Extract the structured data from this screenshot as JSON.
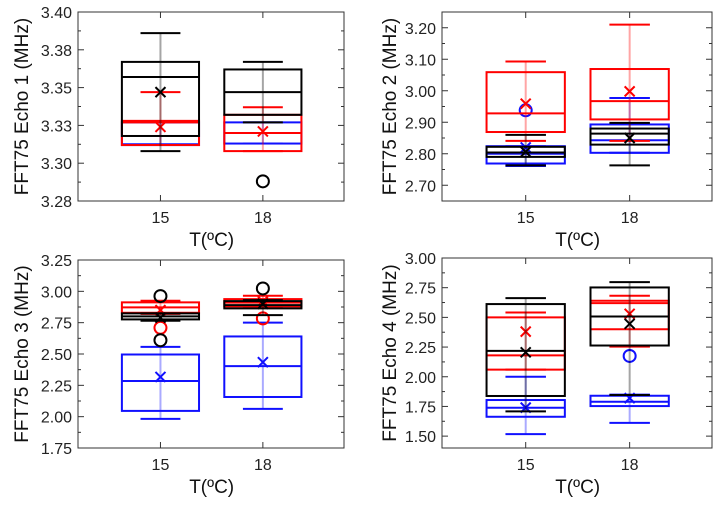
{
  "chart_data": [
    {
      "type": "box",
      "ylabel": "FFT75 Echo 1 (MHz)",
      "xlabel": "T(ºC)",
      "categories": [
        "15",
        "18"
      ],
      "ylim": [
        3.275,
        3.4
      ],
      "yticks": [
        3.4,
        3.375,
        3.35,
        3.325,
        3.3,
        3.275
      ],
      "yticklabels": [
        "3.40",
        "3.38",
        "3.35",
        "3.33",
        "3.30",
        "3.28"
      ],
      "series": [
        {
          "name": "blue",
          "color": "#1010ff",
          "boxes": [
            {
              "lo": 3.312,
              "q1": 3.312,
              "med": 3.3125,
              "q3": 3.327,
              "hi": 3.327,
              "mean": null,
              "outliers": []
            },
            {
              "lo": 3.313,
              "q1": 3.313,
              "med": 3.32,
              "q3": 3.327,
              "hi": 3.327,
              "mean": null,
              "outliers": []
            }
          ]
        },
        {
          "name": "red",
          "color": "#ff0000",
          "boxes": [
            {
              "lo": 3.312,
              "q1": 3.312,
              "med": 3.327,
              "q3": 3.328,
              "hi": 3.347,
              "mean": 3.324,
              "outliers": []
            },
            {
              "lo": 3.308,
              "q1": 3.308,
              "med": 3.32,
              "q3": 3.332,
              "hi": 3.337,
              "mean": 3.321,
              "outliers": []
            }
          ]
        },
        {
          "name": "black",
          "color": "#000000",
          "boxes": [
            {
              "lo": 3.308,
              "q1": 3.318,
              "med": 3.357,
              "q3": 3.367,
              "hi": 3.386,
              "mean": 3.347,
              "outliers": []
            },
            {
              "lo": 3.327,
              "q1": 3.332,
              "med": 3.347,
              "q3": 3.362,
              "hi": 3.367,
              "mean": null,
              "outliers": [
                3.288
              ]
            }
          ]
        }
      ]
    },
    {
      "type": "box",
      "ylabel": "FFT75 Echo 2 (MHz)",
      "xlabel": "T(ºC)",
      "categories": [
        "15",
        "18"
      ],
      "ylim": [
        2.65,
        3.25
      ],
      "yticks": [
        3.2,
        3.1,
        3.0,
        2.9,
        2.8,
        2.7
      ],
      "yticklabels": [
        "3.20",
        "3.10",
        "3.00",
        "2.90",
        "2.80",
        "2.70"
      ],
      "series": [
        {
          "name": "blue",
          "color": "#1010ff",
          "boxes": [
            {
              "lo": 2.761,
              "q1": 2.769,
              "med": 2.8,
              "q3": 2.824,
              "hi": 2.824,
              "mean": 2.82,
              "outliers": [
                2.938
              ]
            },
            {
              "lo": 2.803,
              "q1": 2.803,
              "med": 2.843,
              "q3": 2.893,
              "hi": 2.977,
              "mean": null,
              "outliers": []
            }
          ]
        },
        {
          "name": "red",
          "color": "#ff0000",
          "boxes": [
            {
              "lo": 2.841,
              "q1": 2.869,
              "med": 2.928,
              "q3": 3.059,
              "hi": 3.093,
              "mean": 2.959,
              "outliers": []
            },
            {
              "lo": 2.841,
              "q1": 2.909,
              "med": 2.967,
              "q3": 3.069,
              "hi": 3.21,
              "mean": 2.998,
              "outliers": []
            }
          ]
        },
        {
          "name": "black",
          "color": "#000000",
          "boxes": [
            {
              "lo": 2.763,
              "q1": 2.79,
              "med": 2.804,
              "q3": 2.822,
              "hi": 2.86,
              "mean": 2.806,
              "outliers": []
            },
            {
              "lo": 2.763,
              "q1": 2.829,
              "med": 2.864,
              "q3": 2.88,
              "hi": 2.898,
              "mean": 2.85,
              "outliers": []
            }
          ]
        }
      ]
    },
    {
      "type": "box",
      "ylabel": "FFT75 Echo 3 (MHz)",
      "xlabel": "T(ºC)",
      "categories": [
        "15",
        "18"
      ],
      "ylim": [
        1.75,
        3.25
      ],
      "yticks": [
        3.25,
        3.0,
        2.75,
        2.5,
        2.25,
        2.0,
        1.75
      ],
      "yticklabels": [
        "3.25",
        "3.00",
        "2.75",
        "2.50",
        "2.25",
        "2.00",
        "1.75"
      ],
      "series": [
        {
          "name": "blue",
          "color": "#1010ff",
          "boxes": [
            {
              "lo": 1.982,
              "q1": 2.046,
              "med": 2.285,
              "q3": 2.496,
              "hi": 2.557,
              "mean": 2.317,
              "outliers": []
            },
            {
              "lo": 2.062,
              "q1": 2.157,
              "med": 2.403,
              "q3": 2.64,
              "hi": 2.75,
              "mean": 2.435,
              "outliers": []
            }
          ]
        },
        {
          "name": "red",
          "color": "#ff0000",
          "boxes": [
            {
              "lo": 2.82,
              "q1": 2.829,
              "med": 2.872,
              "q3": 2.912,
              "hi": 2.925,
              "mean": 2.85,
              "outliers": [
                2.709
              ]
            },
            {
              "lo": 2.88,
              "q1": 2.88,
              "med": 2.91,
              "q3": 2.938,
              "hi": 2.965,
              "mean": 2.92,
              "outliers": [
                2.784
              ]
            }
          ]
        },
        {
          "name": "black",
          "color": "#000000",
          "boxes": [
            {
              "lo": 2.765,
              "q1": 2.776,
              "med": 2.8,
              "q3": 2.824,
              "hi": 2.824,
              "mean": 2.79,
              "outliers": [
                2.962,
                2.61
              ]
            },
            {
              "lo": 2.81,
              "q1": 2.864,
              "med": 2.89,
              "q3": 2.922,
              "hi": 2.93,
              "mean": 2.9,
              "outliers": [
                3.023
              ]
            }
          ]
        }
      ]
    },
    {
      "type": "box",
      "ylabel": "FFT75 Echo 4 (MHz)",
      "xlabel": "T(ºC)",
      "categories": [
        "15",
        "18"
      ],
      "ylim": [
        1.4,
        3.0
      ],
      "yticks": [
        3.0,
        2.75,
        2.5,
        2.25,
        2.0,
        1.75,
        1.5
      ],
      "yticklabels": [
        "3.00",
        "2.75",
        "2.50",
        "2.25",
        "2.00",
        "1.75",
        "1.50"
      ],
      "series": [
        {
          "name": "blue",
          "color": "#1010ff",
          "boxes": [
            {
              "lo": 1.517,
              "q1": 1.663,
              "med": 1.739,
              "q3": 1.804,
              "hi": 2.0,
              "mean": 1.74,
              "outliers": []
            },
            {
              "lo": 1.612,
              "q1": 1.753,
              "med": 1.79,
              "q3": 1.84,
              "hi": 1.85,
              "mean": 1.82,
              "outliers": [
                2.175
              ]
            }
          ]
        },
        {
          "name": "red",
          "color": "#ff0000",
          "boxes": [
            {
              "lo": 2.06,
              "q1": 2.06,
              "med": 2.18,
              "q3": 2.5,
              "hi": 2.541,
              "mean": 2.38,
              "outliers": []
            },
            {
              "lo": 2.254,
              "q1": 2.4,
              "med": 2.62,
              "q3": 2.64,
              "hi": 2.682,
              "mean": 2.53,
              "outliers": []
            }
          ]
        },
        {
          "name": "black",
          "color": "#000000",
          "boxes": [
            {
              "lo": 1.708,
              "q1": 1.838,
              "med": 2.218,
              "q3": 2.612,
              "hi": 2.662,
              "mean": 2.206,
              "outliers": []
            },
            {
              "lo": 1.846,
              "q1": 2.263,
              "med": 2.507,
              "q3": 2.752,
              "hi": 2.797,
              "mean": 2.446,
              "outliers": []
            }
          ]
        }
      ]
    }
  ]
}
